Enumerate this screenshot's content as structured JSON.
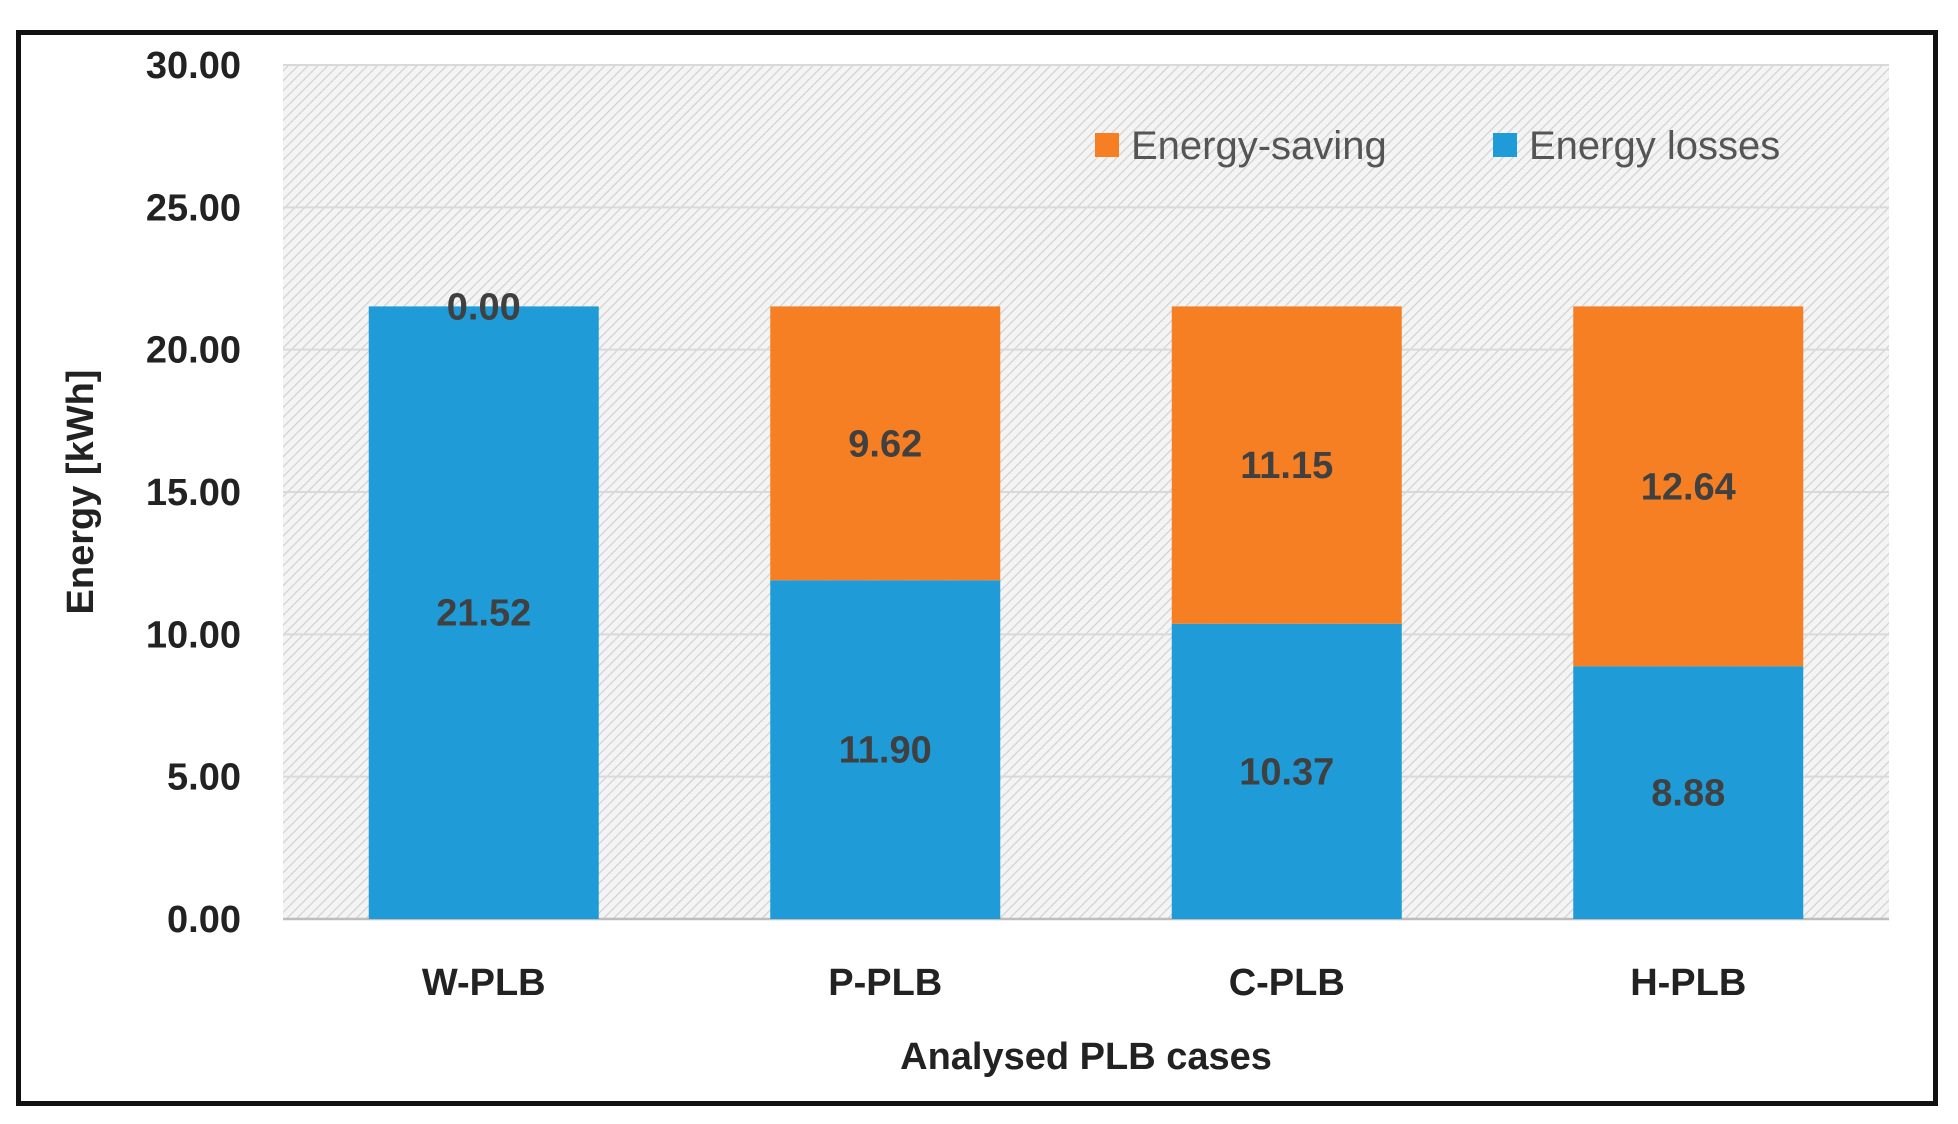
{
  "chart_data": {
    "type": "bar",
    "stacked": true,
    "title": "",
    "xlabel": "Analysed PLB cases",
    "ylabel": "Energy [kWh]",
    "ylim": [
      0,
      30
    ],
    "y_ticks": [
      0,
      5,
      10,
      15,
      20,
      25,
      30
    ],
    "y_tick_labels": [
      "0.00",
      "5.00",
      "10.00",
      "15.00",
      "20.00",
      "25.00",
      "30.00"
    ],
    "grid": true,
    "legend_position": "top-right",
    "categories": [
      "W-PLB",
      "P-PLB",
      "C-PLB",
      "H-PLB"
    ],
    "series": [
      {
        "name": "Energy losses",
        "color": "#1f9bd7",
        "values": [
          21.52,
          11.9,
          10.37,
          8.88
        ],
        "labels": [
          "21.52",
          "11.90",
          "10.37",
          "8.88"
        ]
      },
      {
        "name": "Energy-saving",
        "color": "#f57f22",
        "values": [
          0.0,
          9.62,
          11.15,
          12.64
        ],
        "labels": [
          "0.00",
          "9.62",
          "11.15",
          "12.64"
        ]
      }
    ],
    "legend_order": [
      "Energy-saving",
      "Energy losses"
    ]
  }
}
